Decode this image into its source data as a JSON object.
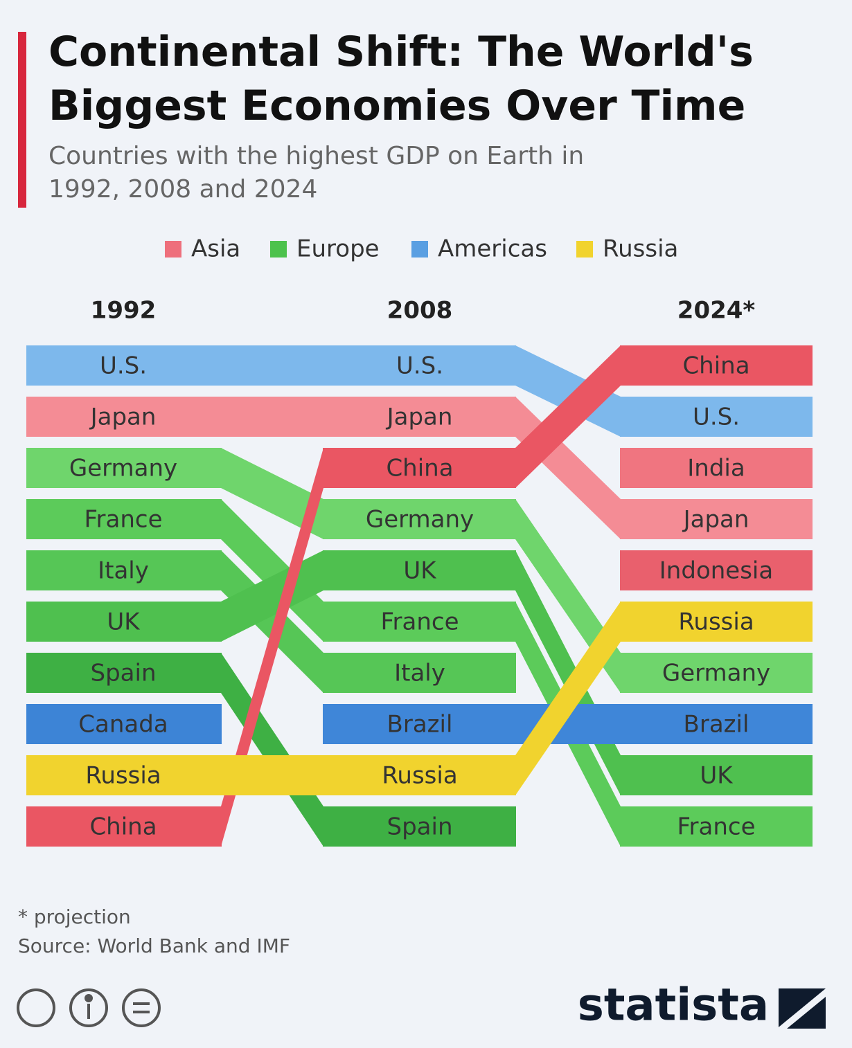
{
  "chart_data": {
    "type": "bump",
    "title": "Continental Shift: The World's Biggest Economies Over Time",
    "subtitle": "Countries with the highest GDP on Earth in 1992, 2008 and 2024",
    "categories": [
      "1992",
      "2008",
      "2024*"
    ],
    "legend": [
      {
        "name": "Asia",
        "color": "#ee6f7c"
      },
      {
        "name": "Europe",
        "color": "#4cc24c"
      },
      {
        "name": "Americas",
        "color": "#5a9fe2"
      },
      {
        "name": "Russia",
        "color": "#f1d32e"
      }
    ],
    "series": [
      {
        "name": "U.S.",
        "color": "#7db8ec",
        "ranks": [
          1,
          1,
          2
        ]
      },
      {
        "name": "Japan",
        "color": "#f48c95",
        "ranks": [
          2,
          2,
          4
        ]
      },
      {
        "name": "Germany",
        "color": "#6fd56c",
        "ranks": [
          3,
          4,
          7
        ]
      },
      {
        "name": "France",
        "color": "#5ccb5a",
        "ranks": [
          4,
          6,
          10
        ]
      },
      {
        "name": "Italy",
        "color": "#56c656",
        "ranks": [
          5,
          7,
          null
        ]
      },
      {
        "name": "UK",
        "color": "#4fc04f",
        "ranks": [
          6,
          5,
          9
        ]
      },
      {
        "name": "Spain",
        "color": "#3eb044",
        "ranks": [
          7,
          10,
          null
        ]
      },
      {
        "name": "Canada",
        "color": "#3d84d6",
        "ranks": [
          8,
          null,
          null
        ]
      },
      {
        "name": "Russia",
        "color": "#f1d32e",
        "ranks": [
          9,
          9,
          6
        ]
      },
      {
        "name": "China",
        "color": "#ea5663",
        "ranks": [
          10,
          3,
          1
        ]
      },
      {
        "name": "Brazil",
        "color": "#3f86d8",
        "ranks": [
          null,
          8,
          8
        ]
      },
      {
        "name": "India",
        "color": "#f07580",
        "ranks": [
          null,
          null,
          3
        ]
      },
      {
        "name": "Indonesia",
        "color": "#e9606d",
        "ranks": [
          null,
          null,
          5
        ]
      }
    ],
    "footnote": "* projection",
    "source": "Source: World Bank and IMF",
    "brand": "statista"
  }
}
